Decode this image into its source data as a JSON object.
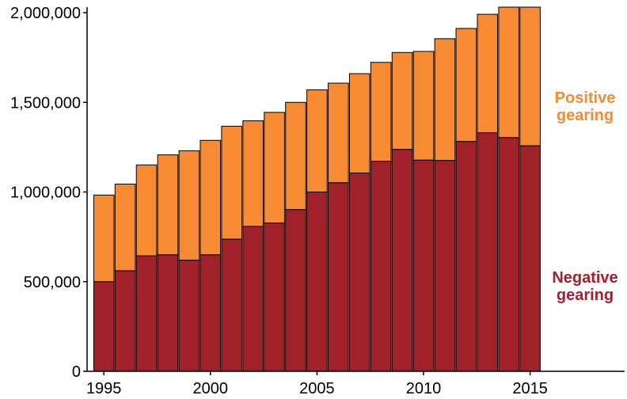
{
  "chart_data": {
    "type": "bar",
    "stacked": true,
    "title": "",
    "xlabel": "",
    "ylabel": "",
    "categories": [
      1995,
      1996,
      1997,
      1998,
      1999,
      2000,
      2001,
      2002,
      2003,
      2004,
      2005,
      2006,
      2007,
      2008,
      2009,
      2010,
      2011,
      2012,
      2013,
      2014,
      2015
    ],
    "series": [
      {
        "name": "Negative gearing",
        "color": "#a0212a",
        "values": [
          500000,
          561000,
          644000,
          650000,
          620000,
          650000,
          737000,
          808000,
          827000,
          902000,
          1000000,
          1052000,
          1106000,
          1172000,
          1238000,
          1178000,
          1176000,
          1282000,
          1331000,
          1304000,
          1258000
        ]
      },
      {
        "name": "Positive gearing",
        "color": "#f68b33",
        "values": [
          483000,
          483000,
          507000,
          557000,
          610000,
          638000,
          630000,
          589000,
          617000,
          598000,
          570000,
          555000,
          554000,
          551000,
          540000,
          606000,
          679000,
          630000,
          660000,
          727000,
          773000
        ]
      }
    ],
    "x_ticks": [
      "1995",
      "2000",
      "2005",
      "2010",
      "2015"
    ],
    "y_ticks": [
      "0",
      "500,000",
      "1,000,000",
      "1,500,000",
      "2,000,000"
    ],
    "y_tick_values": [
      0,
      500000,
      1000000,
      1500000,
      2000000
    ],
    "ylim": [
      0,
      2031000
    ],
    "xlim": [
      1994,
      2019
    ],
    "grid": false,
    "legend": [
      {
        "text": "Positive\ngearing",
        "series": "Positive gearing",
        "color": "#f68b33"
      },
      {
        "text": "Negative\ngearing",
        "series": "Negative gearing",
        "color": "#a0212a"
      }
    ],
    "legend_placement": "right"
  }
}
